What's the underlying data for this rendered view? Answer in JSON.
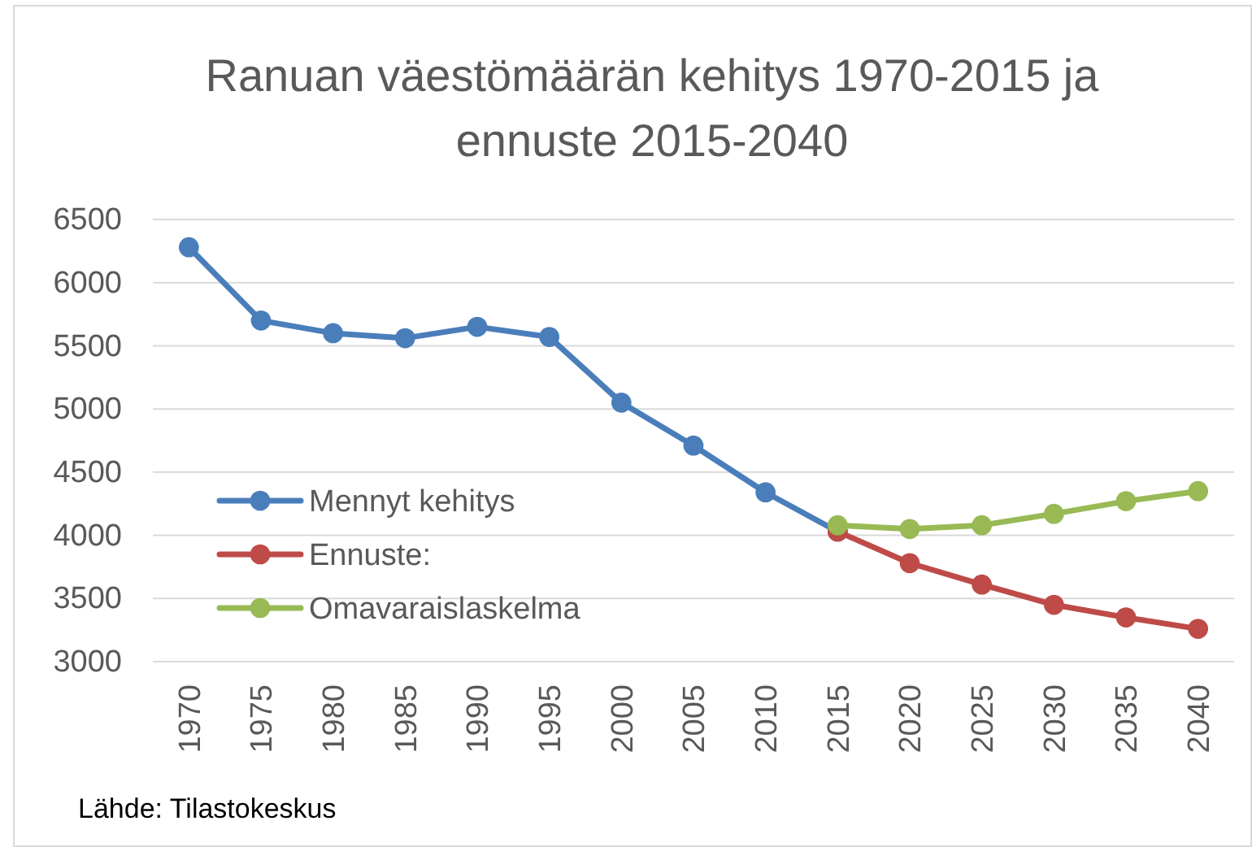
{
  "chart_data": {
    "type": "line",
    "title": "Ranuan väestömäärän kehitys 1970-2015 ja ennuste 2015-2040",
    "categories": [
      "1970",
      "1975",
      "1980",
      "1985",
      "1990",
      "1995",
      "2000",
      "2005",
      "2010",
      "2015",
      "2020",
      "2025",
      "2030",
      "2035",
      "2040"
    ],
    "series": [
      {
        "name": "Mennyt kehitys",
        "color": "#4a7ebb",
        "values": [
          6280,
          5700,
          5600,
          5560,
          5650,
          5570,
          5050,
          4710,
          4340,
          4030,
          null,
          null,
          null,
          null,
          null
        ]
      },
      {
        "name": "Ennuste:",
        "color": "#be4b48",
        "values": [
          null,
          null,
          null,
          null,
          null,
          null,
          null,
          null,
          null,
          4030,
          3780,
          3610,
          3450,
          3350,
          3260
        ]
      },
      {
        "name": "Omavaraislaskelma",
        "color": "#98b954",
        "values": [
          null,
          null,
          null,
          null,
          null,
          null,
          null,
          null,
          null,
          4080,
          4050,
          4080,
          4170,
          4270,
          4350
        ]
      }
    ],
    "ylim": [
      3000,
      6500
    ],
    "yticks": [
      3000,
      3500,
      4000,
      4500,
      5000,
      5500,
      6000,
      6500
    ],
    "grid": "y",
    "legend": "bottom left",
    "marker": "circle",
    "line_style": "solid",
    "annotations": [
      "Lähde: Tilastokeskus"
    ]
  }
}
